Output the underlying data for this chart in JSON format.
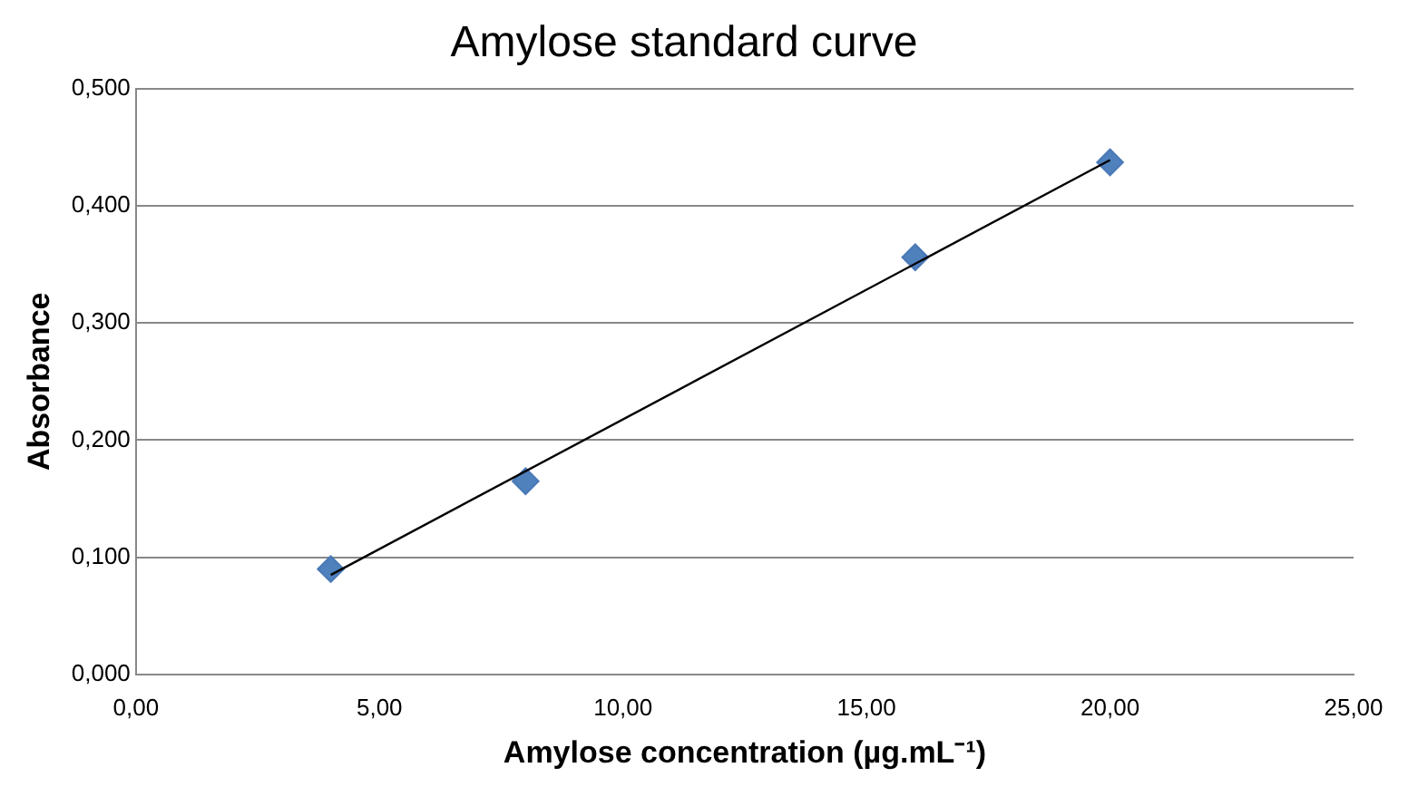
{
  "chart_data": {
    "type": "scatter",
    "title": "Amylose standard curve",
    "xlabel": "Amylose concentration (µg.mL⁻¹)",
    "ylabel": "Absorbance",
    "x": [
      4,
      8,
      16,
      20
    ],
    "series": [
      {
        "color": "#4f81bd",
        "values": [
          0.09,
          0.165,
          0.356,
          0.437
        ],
        "marker": "diamond"
      },
      {
        "type": "line",
        "color": "#000000",
        "x": [
          4,
          20
        ],
        "values": [
          0.085,
          0.439
        ],
        "marker": "none"
      }
    ],
    "xlim": [
      0,
      25
    ],
    "xticks": [
      {
        "value": 0,
        "label": "0,00"
      },
      {
        "value": 5,
        "label": "5,00"
      },
      {
        "value": 10,
        "label": "10,00"
      },
      {
        "value": 15,
        "label": "15,00"
      },
      {
        "value": 20,
        "label": "20,00"
      },
      {
        "value": 25,
        "label": "25,00"
      }
    ],
    "ylim": [
      0,
      0.5
    ],
    "yticks": [
      {
        "value": 0,
        "label": "0,000"
      },
      {
        "value": 0.1,
        "label": "0,100"
      },
      {
        "value": 0.2,
        "label": "0,200"
      },
      {
        "value": 0.3,
        "label": "0,300"
      },
      {
        "value": 0.4,
        "label": "0,400"
      },
      {
        "value": 0.5,
        "label": "0,500"
      }
    ],
    "grid": "y",
    "legend": false
  }
}
